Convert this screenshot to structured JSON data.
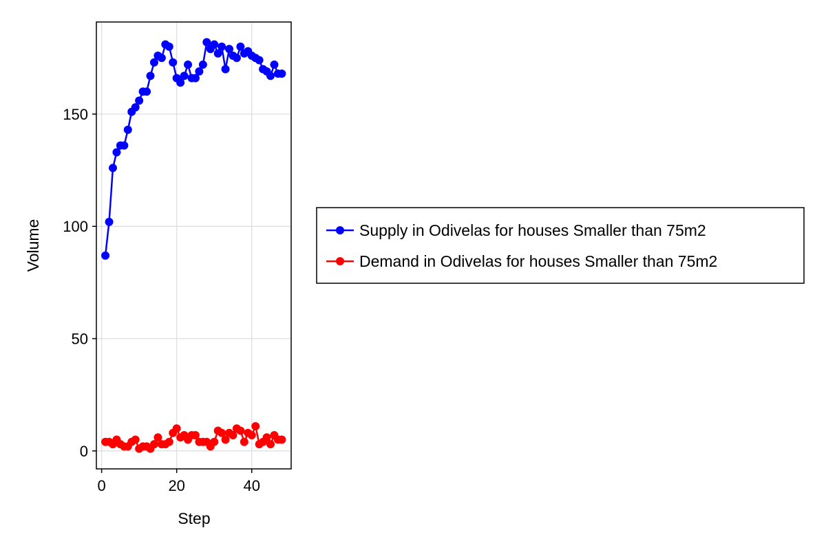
{
  "chart_data": {
    "type": "line",
    "title": "",
    "xlabel": "Step",
    "ylabel": "Volume",
    "xlim": [
      -1.4,
      50.5
    ],
    "ylim": [
      -8,
      191
    ],
    "xticks": [
      0,
      20,
      40
    ],
    "yticks": [
      0,
      50,
      100,
      150
    ],
    "grid": true,
    "markers": true,
    "legend_placement": "right-outside",
    "series": [
      {
        "name": "Supply in Odivelas for houses Smaller than 75m2",
        "color": "#0000ff",
        "x": [
          1,
          2,
          3,
          4,
          5,
          6,
          7,
          8,
          9,
          10,
          11,
          12,
          13,
          14,
          15,
          16,
          17,
          18,
          19,
          20,
          21,
          22,
          23,
          24,
          25,
          26,
          27,
          28,
          29,
          30,
          31,
          32,
          33,
          34,
          35,
          36,
          37,
          38,
          39,
          40,
          41,
          42,
          43,
          44,
          45,
          46,
          47,
          48
        ],
        "y": [
          87,
          102,
          126,
          133,
          136,
          136,
          143,
          151,
          153,
          156,
          160,
          160,
          167,
          173,
          176,
          175,
          181,
          180,
          173,
          166,
          164,
          167,
          172,
          166,
          166,
          169,
          172,
          182,
          179,
          181,
          177,
          180,
          170,
          179,
          176,
          175,
          180,
          177,
          178,
          176,
          175,
          174,
          170,
          169,
          167,
          172,
          168,
          168
        ]
      },
      {
        "name": "Demand in Odivelas for houses Smaller than 75m2",
        "color": "#ff0000",
        "x": [
          1,
          2,
          3,
          4,
          5,
          6,
          7,
          8,
          9,
          10,
          11,
          12,
          13,
          14,
          15,
          16,
          17,
          18,
          19,
          20,
          21,
          22,
          23,
          24,
          25,
          26,
          27,
          28,
          29,
          30,
          31,
          32,
          33,
          34,
          35,
          36,
          37,
          38,
          39,
          40,
          41,
          42,
          43,
          44,
          45,
          46,
          47,
          48
        ],
        "y": [
          4,
          4,
          3,
          5,
          3,
          2,
          2,
          4,
          5,
          1,
          2,
          2,
          1,
          3,
          6,
          3,
          3,
          4,
          8,
          10,
          6,
          7,
          5,
          7,
          7,
          4,
          4,
          4,
          2,
          4,
          9,
          8,
          5,
          8,
          7,
          10,
          9,
          4,
          8,
          7,
          11,
          3,
          4,
          6,
          3,
          7,
          5,
          5
        ]
      }
    ]
  }
}
